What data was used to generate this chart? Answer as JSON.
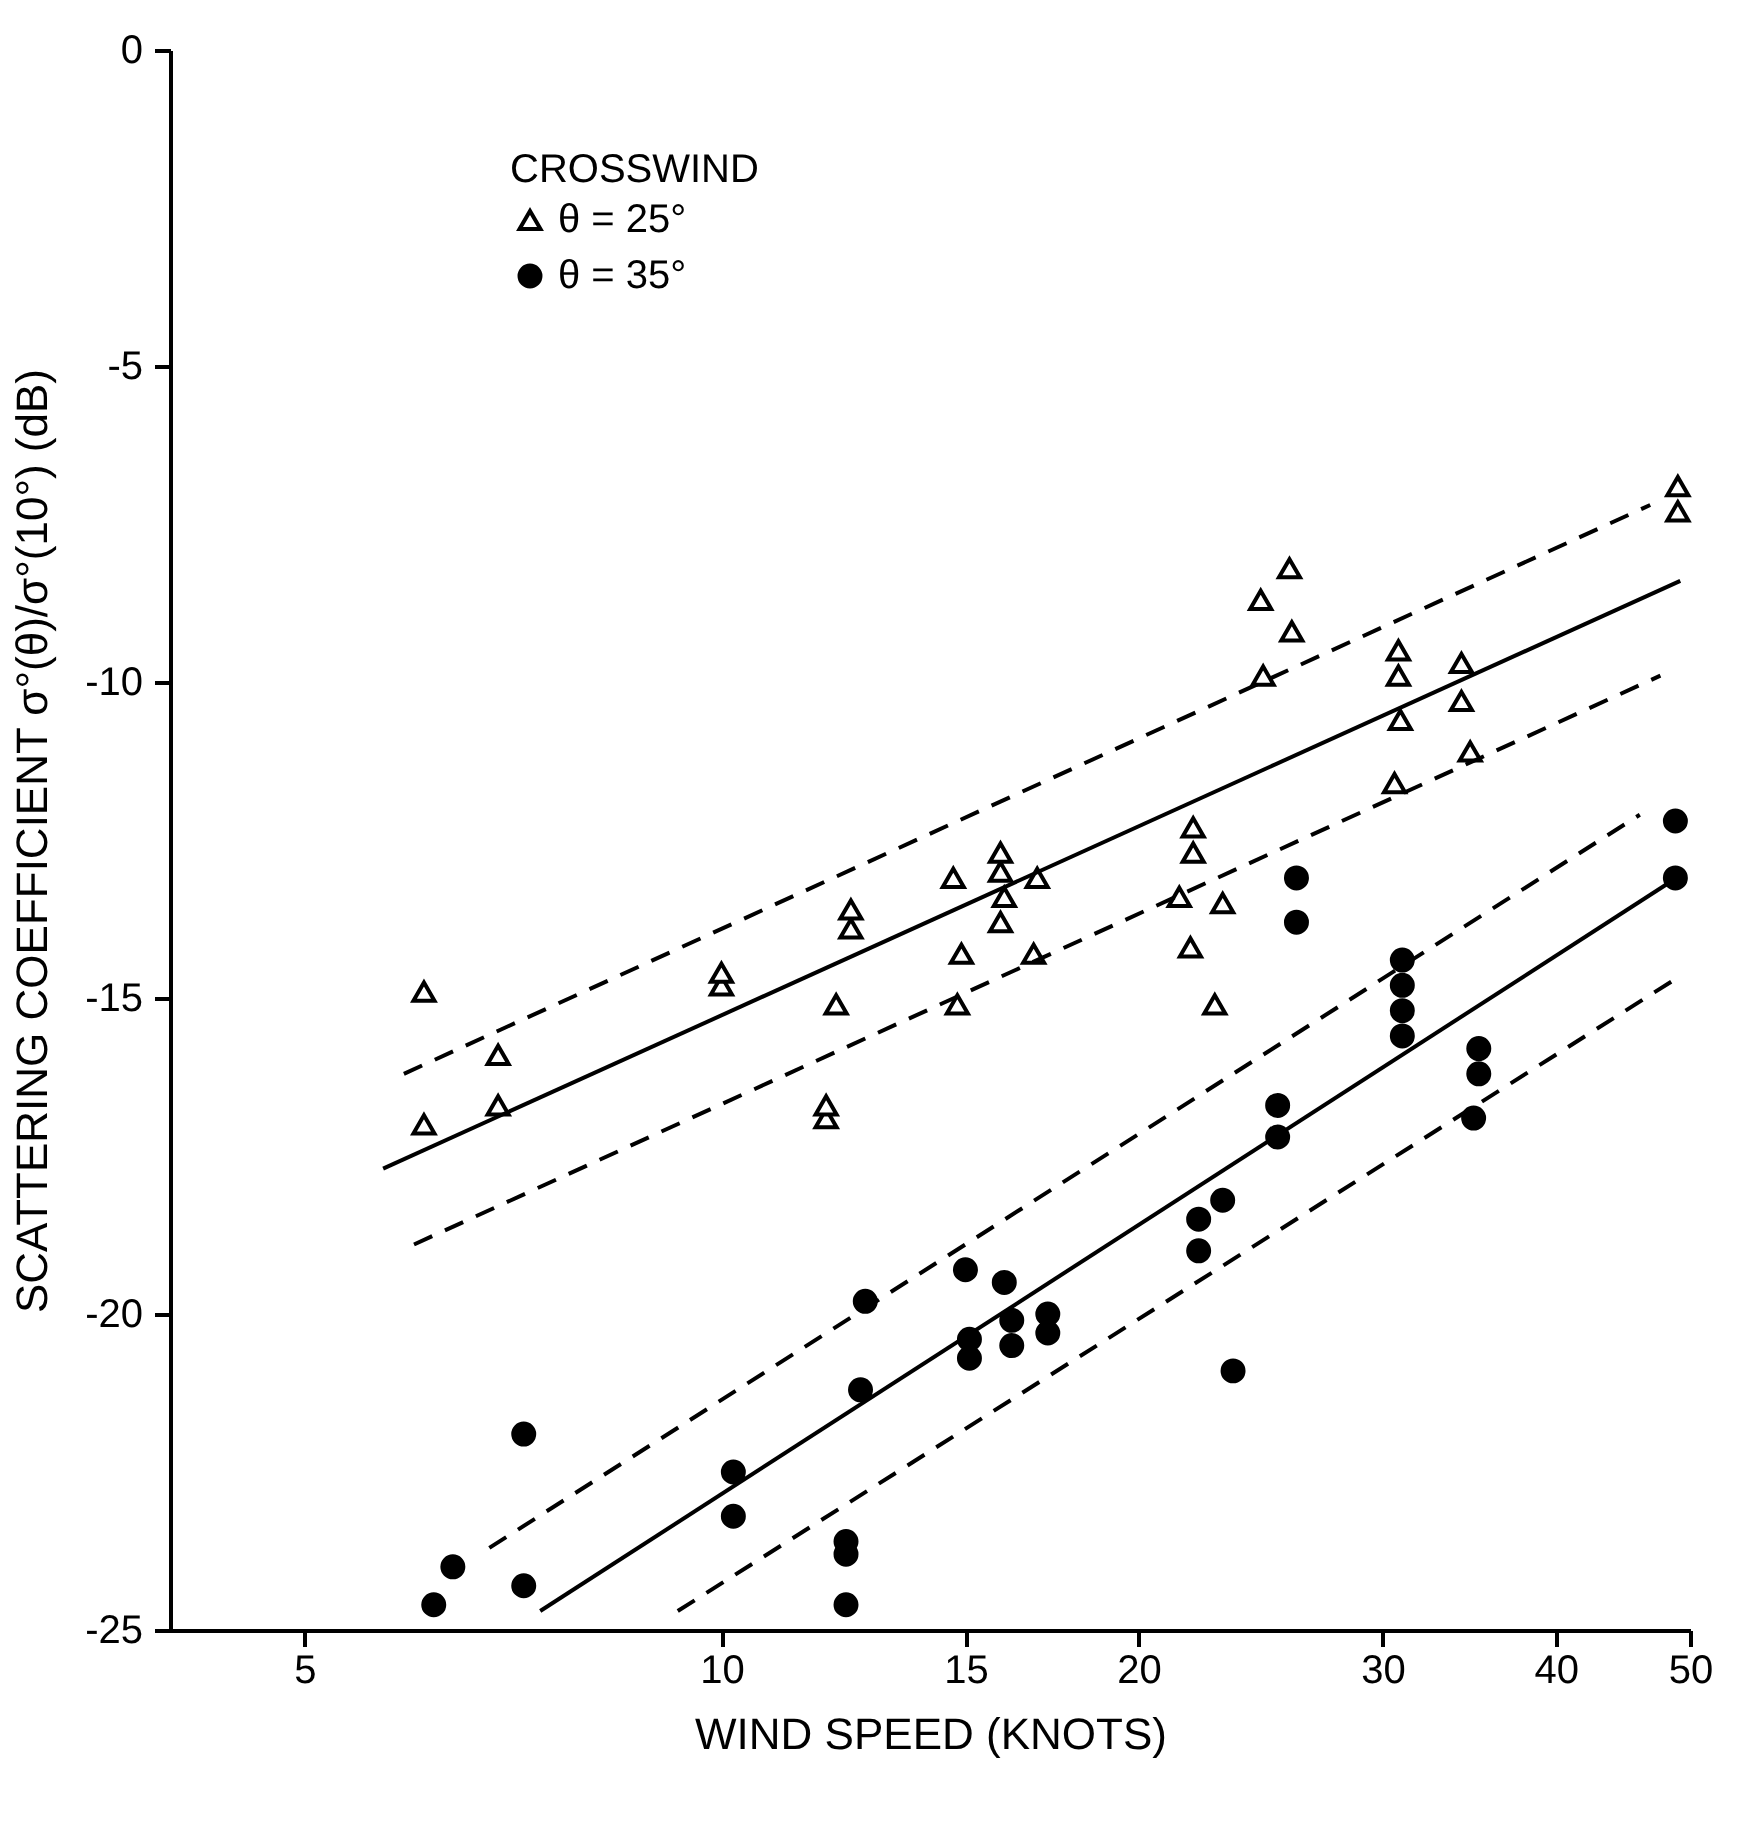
{
  "chart_data": {
    "type": "scatter",
    "xlabel": "WIND SPEED (KNOTS)",
    "ylabel": "SCATTERING COEFFICIENT σ°(θ)/σ°(10°) (dB)",
    "legend_title": "CROSSWIND",
    "log": "x",
    "xlim": [
      4,
      50
    ],
    "xticks": [
      5,
      10,
      15,
      20,
      30,
      40,
      50
    ],
    "ylim": [
      -25,
      0
    ],
    "yticks": [
      -25,
      -20,
      -15,
      -10,
      -5,
      0
    ],
    "grid": false,
    "legend": "top left",
    "series": [
      {
        "name": "θ = 25°",
        "type": "scatter",
        "marker": "triangle",
        "color": "#000000",
        "x": [
          6.1,
          6.1,
          6.9,
          6.9,
          10,
          10,
          11.9,
          11.9,
          12.1,
          12.4,
          12.4,
          14.8,
          14.9,
          14.7,
          15.9,
          16,
          15.9,
          15.9,
          16.8,
          16.9,
          22.7,
          21.8,
          21.4,
          23,
          21.9,
          21.9,
          24.6,
          24.5,
          25.8,
          25.7,
          30.6,
          30.9,
          30.8,
          30.8,
          34.7,
          34.2,
          34.2,
          49,
          49
        ],
        "values": [
          -17.0,
          -14.9,
          -16.7,
          -15.9,
          -14.8,
          -14.6,
          -16.9,
          -16.7,
          -15.1,
          -13.9,
          -13.6,
          -15.1,
          -14.3,
          -13.1,
          -13.8,
          -13.4,
          -13.0,
          -12.7,
          -14.3,
          -13.1,
          -15.1,
          -14.2,
          -13.4,
          -13.5,
          -12.7,
          -12.3,
          -9.9,
          -8.7,
          -9.2,
          -8.2,
          -11.6,
          -10.6,
          -9.9,
          -9.5,
          -11.1,
          -10.3,
          -9.7,
          -7.3,
          -6.9
        ]
      },
      {
        "name": "θ = 35°",
        "type": "scatter",
        "marker": "circle",
        "color": "#000000",
        "x": [
          6.2,
          6.4,
          7.2,
          7.2,
          10.2,
          10.2,
          12.3,
          12.3,
          12.3,
          12.6,
          12.7,
          15.1,
          15.1,
          15,
          16.2,
          16.2,
          16,
          17.2,
          17.2,
          23.4,
          22.1,
          22.1,
          23,
          25.2,
          25.2,
          26,
          26,
          31,
          31,
          31,
          31,
          34.9,
          35.2,
          35.2,
          48.8,
          48.8
        ],
        "values": [
          -24.6,
          -24.0,
          -24.3,
          -21.9,
          -23.2,
          -22.5,
          -24.6,
          -23.8,
          -23.6,
          -21.2,
          -19.8,
          -20.7,
          -20.4,
          -19.3,
          -20.5,
          -20.1,
          -19.5,
          -20.3,
          -20.0,
          -20.9,
          -19.0,
          -18.5,
          -18.2,
          -17.2,
          -16.7,
          -13.8,
          -13.1,
          -15.6,
          -15.2,
          -14.8,
          -14.4,
          -16.9,
          -16.2,
          -15.8,
          -13.1,
          -12.2
        ]
      },
      {
        "type": "line",
        "line_style": "solid",
        "color": "#000000",
        "x": [
          5.7,
          49.2
        ],
        "values": [
          -17.7,
          -8.4
        ]
      },
      {
        "type": "line",
        "line_style": "dashed",
        "color": "#000000",
        "x": [
          5.9,
          46.8
        ],
        "values": [
          -16.2,
          -7.2
        ]
      },
      {
        "type": "line",
        "line_style": "dashed",
        "color": "#000000",
        "x": [
          6.0,
          47.6
        ],
        "values": [
          -18.9,
          -9.9
        ]
      },
      {
        "type": "line",
        "line_style": "solid",
        "color": "#000000",
        "x": [
          7.4,
          48.1
        ],
        "values": [
          -24.7,
          -13.2
        ]
      },
      {
        "type": "line",
        "line_style": "dashed",
        "color": "#000000",
        "x": [
          6.8,
          46.0
        ],
        "values": [
          -23.7,
          -12.1
        ]
      },
      {
        "type": "line",
        "line_style": "dashed",
        "color": "#000000",
        "x": [
          9.3,
          48.8
        ],
        "values": [
          -24.7,
          -14.7
        ]
      }
    ]
  }
}
